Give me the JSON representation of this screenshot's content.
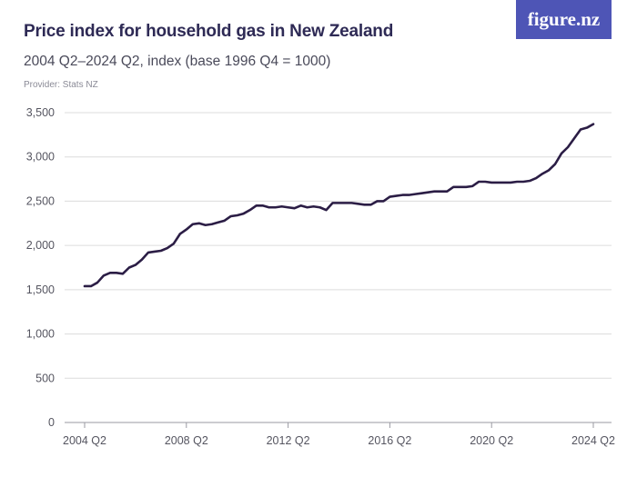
{
  "header": {
    "title": "Price index for household gas in New Zealand",
    "subtitle": "2004 Q2–2024 Q2, index (base 1996 Q4 = 1000)",
    "provider": "Provider: Stats NZ",
    "logo": "figure.nz"
  },
  "colors": {
    "line": "#2b1d45",
    "grid": "#dcdcdc",
    "logo_bg": "#4e55b6",
    "title": "#2e2a55"
  },
  "chart_data": {
    "type": "line",
    "title": "Price index for household gas in New Zealand",
    "subtitle": "2004 Q2–2024 Q2, index (base 1996 Q4 = 1000)",
    "xlabel": "",
    "ylabel": "",
    "ylim": [
      0,
      3500
    ],
    "yticks": [
      0,
      500,
      1000,
      1500,
      2000,
      2500,
      3000,
      3500
    ],
    "ytick_labels": [
      "0",
      "500",
      "1,000",
      "1,500",
      "2,000",
      "2,500",
      "3,000",
      "3,500"
    ],
    "xticks": [
      "2004 Q2",
      "2008 Q2",
      "2012 Q2",
      "2016 Q2",
      "2020 Q2",
      "2024 Q2"
    ],
    "grid": true,
    "legend": "none",
    "series": [
      {
        "x": [
          "2004 Q2",
          "2004 Q3",
          "2004 Q4",
          "2005 Q1",
          "2005 Q2",
          "2005 Q3",
          "2005 Q4",
          "2006 Q1",
          "2006 Q2",
          "2006 Q3",
          "2006 Q4",
          "2007 Q1",
          "2007 Q2",
          "2007 Q3",
          "2007 Q4",
          "2008 Q1",
          "2008 Q2",
          "2008 Q3",
          "2008 Q4",
          "2009 Q1",
          "2009 Q2",
          "2009 Q3",
          "2009 Q4",
          "2010 Q1",
          "2010 Q2",
          "2010 Q3",
          "2010 Q4",
          "2011 Q1",
          "2011 Q2",
          "2011 Q3",
          "2011 Q4",
          "2012 Q1",
          "2012 Q2",
          "2012 Q3",
          "2012 Q4",
          "2013 Q1",
          "2013 Q2",
          "2013 Q3",
          "2013 Q4",
          "2014 Q1",
          "2014 Q2",
          "2014 Q3",
          "2014 Q4",
          "2015 Q1",
          "2015 Q2",
          "2015 Q3",
          "2015 Q4",
          "2016 Q1",
          "2016 Q2",
          "2016 Q3",
          "2016 Q4",
          "2017 Q1",
          "2017 Q2",
          "2017 Q3",
          "2017 Q4",
          "2018 Q1",
          "2018 Q2",
          "2018 Q3",
          "2018 Q4",
          "2019 Q1",
          "2019 Q2",
          "2019 Q3",
          "2019 Q4",
          "2020 Q1",
          "2020 Q2",
          "2020 Q3",
          "2020 Q4",
          "2021 Q1",
          "2021 Q2",
          "2021 Q3",
          "2021 Q4",
          "2022 Q1",
          "2022 Q2",
          "2022 Q3",
          "2022 Q4",
          "2023 Q1",
          "2023 Q2",
          "2023 Q3",
          "2023 Q4",
          "2024 Q1",
          "2024 Q2"
        ],
        "values": [
          1540,
          1540,
          1580,
          1660,
          1690,
          1690,
          1680,
          1750,
          1780,
          1840,
          1920,
          1930,
          1940,
          1970,
          2020,
          2130,
          2180,
          2240,
          2250,
          2230,
          2240,
          2260,
          2280,
          2330,
          2340,
          2360,
          2400,
          2450,
          2450,
          2430,
          2430,
          2440,
          2430,
          2420,
          2450,
          2430,
          2440,
          2430,
          2400,
          2480,
          2480,
          2480,
          2480,
          2470,
          2460,
          2460,
          2500,
          2500,
          2550,
          2560,
          2570,
          2570,
          2580,
          2590,
          2600,
          2610,
          2610,
          2610,
          2660,
          2660,
          2660,
          2670,
          2720,
          2720,
          2710,
          2710,
          2710,
          2710,
          2720,
          2720,
          2730,
          2760,
          2810,
          2850,
          2920,
          3040,
          3110,
          3210,
          3310,
          3330,
          3370
        ]
      }
    ]
  }
}
